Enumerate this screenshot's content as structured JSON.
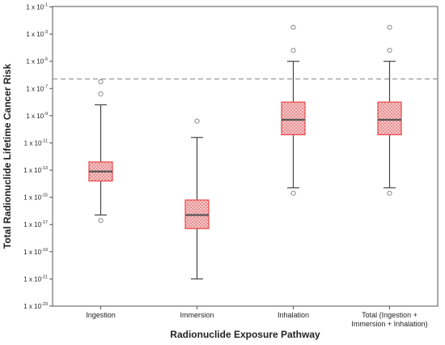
{
  "chart_data": {
    "type": "box",
    "xlabel": "Radionuclide Exposure Pathway",
    "ylabel": "Total Radionuclide Lifetime Cancer Risk",
    "yscale": "log",
    "ylim_exponent": [
      -23,
      -1
    ],
    "y_ticks": [
      {
        "base": "1 x 10",
        "exp": "-1"
      },
      {
        "base": "1 x 10",
        "exp": "-3"
      },
      {
        "base": "1 x 10",
        "exp": "-5"
      },
      {
        "base": "1 x 10",
        "exp": "-7"
      },
      {
        "base": "1 x 10",
        "exp": "-9"
      },
      {
        "base": "1 x 10",
        "exp": "-11"
      },
      {
        "base": "1 x 10",
        "exp": "-13"
      },
      {
        "base": "1 x 10",
        "exp": "-15"
      },
      {
        "base": "1 x 10",
        "exp": "-17"
      },
      {
        "base": "1 x 10",
        "exp": "-19"
      },
      {
        "base": "1 x 10",
        "exp": "-21"
      },
      {
        "base": "1 x 10",
        "exp": "-23"
      }
    ],
    "reference_line_exponent": -6.3,
    "box_color": "#e8474a",
    "box_fill": "#f6c9c9",
    "grid": false,
    "categories": [
      {
        "label_lines": [
          "Ingestion"
        ],
        "whisker_low": -16.3,
        "q1": -13.8,
        "median": -13.1,
        "q3": -12.4,
        "whisker_high": -8.2,
        "outliers": [
          -16.7,
          -7.4,
          -6.5
        ]
      },
      {
        "label_lines": [
          "Immersion"
        ],
        "whisker_low": -21.0,
        "q1": -17.3,
        "median": -16.3,
        "q3": -15.2,
        "whisker_high": -10.6,
        "outliers": [
          -9.4
        ]
      },
      {
        "label_lines": [
          "Inhalation"
        ],
        "whisker_low": -14.3,
        "q1": -10.4,
        "median": -9.3,
        "q3": -8.0,
        "whisker_high": -5.0,
        "outliers": [
          -14.7,
          -4.2,
          -2.5
        ]
      },
      {
        "label_lines": [
          "Total (Ingestion +",
          "Immersion + Inhalation)"
        ],
        "whisker_low": -14.3,
        "q1": -10.4,
        "median": -9.3,
        "q3": -8.0,
        "whisker_high": -5.0,
        "outliers": [
          -14.7,
          -4.2,
          -2.5
        ]
      }
    ]
  }
}
